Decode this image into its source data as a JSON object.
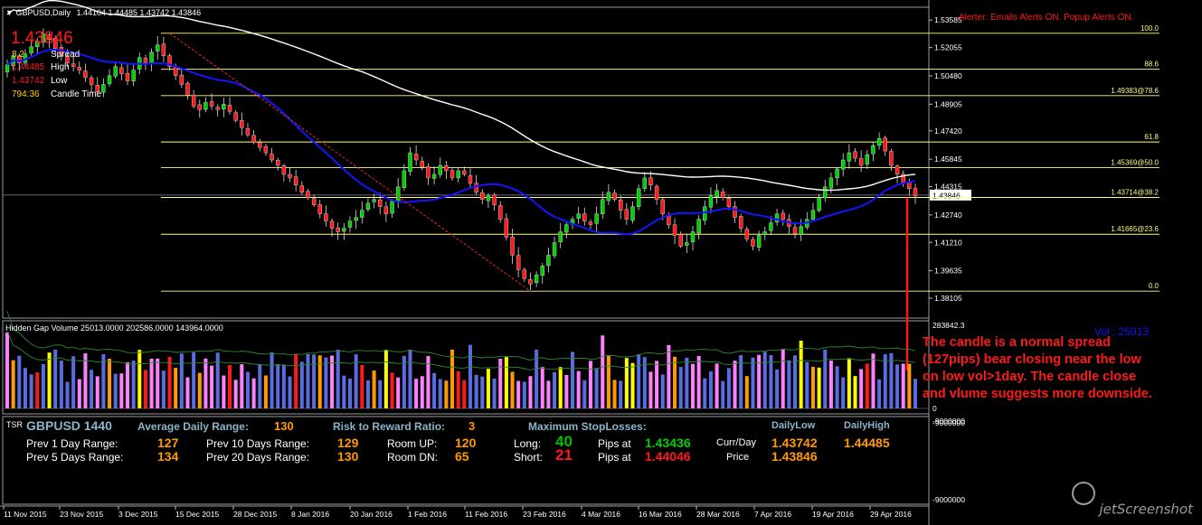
{
  "window": {
    "symbol_title": "GBPUSD,Daily",
    "ohlc": "1.44104 1.44485 1.43742 1.43846"
  },
  "colors": {
    "bull": "#00d000",
    "bear": "#ff1a1a",
    "ma_fast": "#1414ff",
    "ma_slow": "#ffffff",
    "fib": "#ffff80",
    "vol_blue": "#5a6de0",
    "vol_pink": "#ff80ff",
    "vol_orange": "#ff9a00",
    "vol_yellow": "#ffff00",
    "vol_red": "#ff1a1a"
  },
  "info_box": {
    "price": "1.43846",
    "spread_value": "3.2",
    "spread_label": "Spread",
    "high_value": "1.44485",
    "high_label": "High",
    "low_value": "1.43742",
    "low_label": "Low",
    "candle_time_value": "794:36",
    "candle_time_label": "Candle Time"
  },
  "alerter_text": "Alerter:  Emails Alerts ON.  Popup Alerts ON.",
  "chart_data": [
    {
      "type": "candlestick",
      "ylim": [
        1.37,
        1.543
      ],
      "y_ticks": [
        "1.53585",
        "1.52055",
        "1.50480",
        "1.48905",
        "1.47420",
        "1.45845",
        "1.44315",
        "1.42740",
        "1.41210",
        "1.39635",
        "1.38105"
      ],
      "y_tick_values": [
        1.53585,
        1.52055,
        1.5048,
        1.48905,
        1.4742,
        1.45845,
        1.44315,
        1.4274,
        1.4121,
        1.39635,
        1.38105
      ],
      "current_price_label": "1.43846",
      "current_price": 1.43846,
      "x_ticks": [
        "11 Nov 2015",
        "23 Nov 2015",
        "3 Dec 2015",
        "15 Dec 2015",
        "28 Dec 2015",
        "8 Jan 2016",
        "20 Jan 2016",
        "1 Feb 2016",
        "11 Feb 2016",
        "23 Feb 2016",
        "4 Mar 2016",
        "16 Mar 2016",
        "28 Mar 2016",
        "7 Apr 2016",
        "19 Apr 2016",
        "29 Apr 2016"
      ],
      "close_path": [
        1.511,
        1.516,
        1.512,
        1.517,
        1.521,
        1.524,
        1.528,
        1.525,
        1.52,
        1.516,
        1.512,
        1.51,
        1.508,
        1.504,
        1.5,
        1.496,
        1.5,
        1.505,
        1.51,
        1.506,
        1.502,
        1.508,
        1.515,
        1.512,
        1.518,
        1.522,
        1.516,
        1.51,
        1.505,
        1.5,
        1.494,
        1.488,
        1.486,
        1.49,
        1.488,
        1.486,
        1.489,
        1.485,
        1.48,
        1.476,
        1.472,
        1.468,
        1.465,
        1.462,
        1.458,
        1.455,
        1.45,
        1.448,
        1.444,
        1.44,
        1.437,
        1.433,
        1.428,
        1.424,
        1.42,
        1.418,
        1.42,
        1.424,
        1.426,
        1.43,
        1.434,
        1.436,
        1.432,
        1.428,
        1.435,
        1.443,
        1.452,
        1.462,
        1.458,
        1.454,
        1.448,
        1.45,
        1.455,
        1.452,
        1.448,
        1.452,
        1.45,
        1.445,
        1.44,
        1.436,
        1.438,
        1.433,
        1.425,
        1.415,
        1.405,
        1.397,
        1.392,
        1.389,
        1.394,
        1.399,
        1.405,
        1.412,
        1.418,
        1.422,
        1.425,
        1.428,
        1.424,
        1.422,
        1.428,
        1.436,
        1.44,
        1.436,
        1.43,
        1.425,
        1.432,
        1.442,
        1.448,
        1.444,
        1.436,
        1.428,
        1.422,
        1.416,
        1.41,
        1.412,
        1.418,
        1.425,
        1.432,
        1.438,
        1.441,
        1.437,
        1.432,
        1.426,
        1.42,
        1.414,
        1.41,
        1.416,
        1.418,
        1.423,
        1.428,
        1.425,
        1.421,
        1.417,
        1.421,
        1.425,
        1.43,
        1.437,
        1.443,
        1.448,
        1.453,
        1.458,
        1.462,
        1.459,
        1.455,
        1.461,
        1.466,
        1.47,
        1.463,
        1.455,
        1.45,
        1.445,
        1.442,
        1.438
      ],
      "fib_levels": [
        {
          "label": "100.0",
          "price": 1.5285
        },
        {
          "label": "88.6",
          "price": 1.5085
        },
        {
          "label": "1.49383@78.6",
          "price": 1.49383
        },
        {
          "label": "61.8",
          "price": 1.468
        },
        {
          "label": "1.45369@50.0",
          "price": 1.45369
        },
        {
          "label": "1.43714@38.2",
          "price": 1.43714
        },
        {
          "label": "1.41665@23.6",
          "price": 1.41665
        },
        {
          "label": "0.0",
          "price": 1.385
        }
      ]
    },
    {
      "type": "bar",
      "title": "Hidden Gap Volume 25013.0000 202586.0000 143964.0000",
      "vol_label": "Vol : 25013",
      "y_ticks": [
        "283842.3",
        "0",
        "-9000000"
      ],
      "max_value": 283842.3
    },
    {
      "type": "table",
      "label": "TSR",
      "symbol": "GBPUSD 1440",
      "adr_label": "Average Daily Range:",
      "adr_value": "130",
      "rr_label": "Risk to Reward Ratio:",
      "rr_value": "3",
      "prev1_label": "Prev 1 Day Range:",
      "prev1_value": "127",
      "prev5_label": "Prev 5 Days Range:",
      "prev5_value": "134",
      "prev10_label": "Prev 10 Days Range:",
      "prev10_value": "129",
      "prev20_label": "Prev 20 Days Range:",
      "prev20_value": "130",
      "room_up_label": "Room UP:",
      "room_up_value": "120",
      "room_dn_label": "Room DN:",
      "room_dn_value": "65",
      "msl_label": "Maximum  StopLosses:",
      "long_label": "Long:",
      "long_value": "40",
      "short_label": "Short:",
      "short_value": "21",
      "pips_at_label": "Pips at",
      "long_pips_at": "1.43436",
      "short_pips_at": "1.44046",
      "curr_day_label": "Curr/Day",
      "price_label": "Price",
      "daily_low_label": "DailyLow",
      "daily_high_label": "DailyHigh",
      "daily_low_value": "1.43742",
      "daily_high_value": "1.44485",
      "price_value": "1.43846",
      "y_ticks": [
        "-9000000",
        "-9000000"
      ]
    }
  ],
  "annotation": "The candle is a normal spread (127pips) bear closing near the low on low vol>1day. The candle close and vlume suggests more downside.",
  "watermark": "jetScreenshot"
}
